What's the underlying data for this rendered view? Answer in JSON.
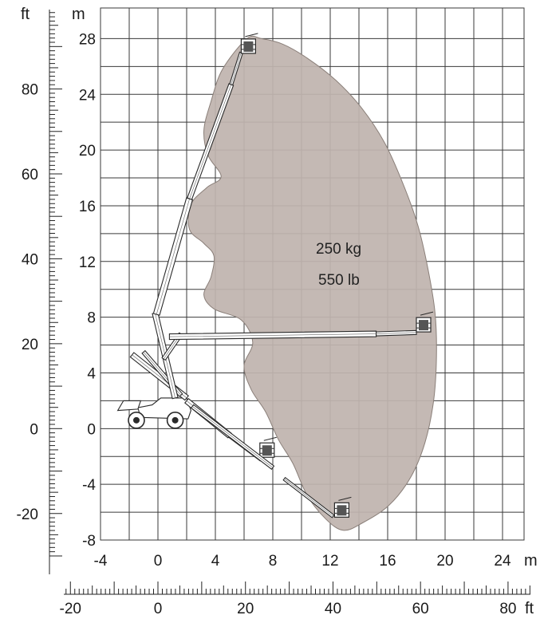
{
  "chart_data": {
    "type": "working-envelope",
    "unit_primary": "m",
    "unit_secondary": "ft",
    "x_ticks_m": [
      -4,
      0,
      4,
      8,
      12,
      16,
      20,
      24
    ],
    "y_ticks_m": [
      -8,
      -4,
      0,
      4,
      8,
      12,
      16,
      20,
      24,
      28
    ],
    "x_ticks_ft": [
      -20,
      0,
      20,
      40,
      60,
      80
    ],
    "y_ticks_ft": [
      -20,
      0,
      20,
      40,
      60,
      80
    ],
    "xlim_m": [
      -4,
      25.5
    ],
    "ylim_m": [
      -8,
      30.2
    ],
    "capacity": {
      "line1": "250 kg",
      "line2": "550 lb"
    },
    "envelope_color": "#bfb4ae",
    "envelope_m": [
      [
        6.2,
        28.0
      ],
      [
        7.2,
        28.0
      ],
      [
        8.7,
        27.6
      ],
      [
        10.4,
        26.6
      ],
      [
        12.4,
        25.0
      ],
      [
        14.2,
        23.0
      ],
      [
        15.8,
        20.5
      ],
      [
        17.1,
        17.5
      ],
      [
        18.1,
        14.6
      ],
      [
        18.8,
        11.5
      ],
      [
        19.3,
        8.3
      ],
      [
        19.4,
        5.2
      ],
      [
        19.2,
        2.0
      ],
      [
        18.6,
        -1.0
      ],
      [
        17.6,
        -3.5
      ],
      [
        16.1,
        -5.5
      ],
      [
        14.2,
        -6.8
      ],
      [
        12.9,
        -7.3
      ],
      [
        11.7,
        -6.5
      ],
      [
        10.4,
        -4.8
      ],
      [
        9.4,
        -2.5
      ],
      [
        8.4,
        -0.8
      ],
      [
        7.5,
        1.2
      ],
      [
        6.5,
        2.8
      ],
      [
        6.0,
        4.5
      ],
      [
        6.6,
        6.2
      ],
      [
        5.8,
        7.8
      ],
      [
        3.9,
        8.6
      ],
      [
        3.2,
        9.6
      ],
      [
        3.7,
        10.9
      ],
      [
        3.9,
        12.4
      ],
      [
        3.2,
        13.3
      ],
      [
        2.2,
        14.3
      ],
      [
        2.3,
        16.1
      ],
      [
        3.4,
        17.3
      ],
      [
        4.4,
        18.1
      ],
      [
        3.5,
        19.6
      ],
      [
        3.2,
        21.4
      ],
      [
        3.7,
        23.5
      ],
      [
        4.5,
        25.8
      ]
    ]
  }
}
